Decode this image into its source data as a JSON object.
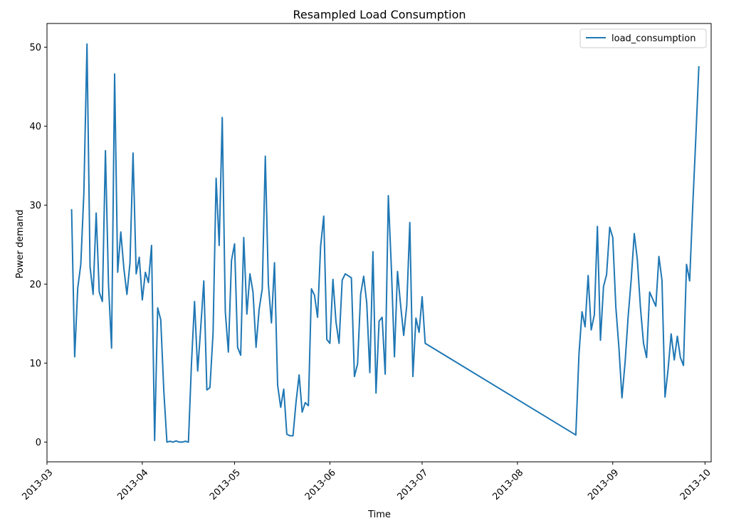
{
  "chart_data": {
    "type": "line",
    "title": "Resampled Load Consumption",
    "xlabel": "Time",
    "ylabel": "Power demand",
    "legend": {
      "placement": "top-right"
    },
    "grid": false,
    "xlim": [
      "2013-03-01",
      "2013-10-03"
    ],
    "ylim": [
      -2.5,
      53
    ],
    "x_ticks": [
      "2013-03-01",
      "2013-04-01",
      "2013-05-01",
      "2013-06-01",
      "2013-07-01",
      "2013-08-01",
      "2013-09-01",
      "2013-10-01"
    ],
    "x_tick_labels": [
      "2013-03",
      "2013-04",
      "2013-05",
      "2013-06",
      "2013-07",
      "2013-08",
      "2013-09",
      "2013-10"
    ],
    "y_ticks": [
      0,
      10,
      20,
      30,
      40,
      50
    ],
    "y_tick_labels": [
      "0",
      "10",
      "20",
      "30",
      "40",
      "50"
    ],
    "series": [
      {
        "name": "load_consumption",
        "color": "#1f77b4",
        "points": [
          [
            "2013-03-09",
            29.4
          ],
          [
            "2013-03-10",
            10.8
          ],
          [
            "2013-03-11",
            19.5
          ],
          [
            "2013-03-12",
            22.5
          ],
          [
            "2013-03-13",
            31.5
          ],
          [
            "2013-03-14",
            50.4
          ],
          [
            "2013-03-15",
            22.2
          ],
          [
            "2013-03-16",
            18.7
          ],
          [
            "2013-03-17",
            29.0
          ],
          [
            "2013-03-18",
            19.0
          ],
          [
            "2013-03-19",
            17.8
          ],
          [
            "2013-03-20",
            36.9
          ],
          [
            "2013-03-21",
            20.0
          ],
          [
            "2013-03-22",
            11.9
          ],
          [
            "2013-03-23",
            46.6
          ],
          [
            "2013-03-24",
            21.5
          ],
          [
            "2013-03-25",
            26.6
          ],
          [
            "2013-03-26",
            22.0
          ],
          [
            "2013-03-27",
            18.7
          ],
          [
            "2013-03-28",
            22.7
          ],
          [
            "2013-03-29",
            36.6
          ],
          [
            "2013-03-30",
            21.3
          ],
          [
            "2013-03-31",
            23.4
          ],
          [
            "2013-04-01",
            18.0
          ],
          [
            "2013-04-02",
            21.5
          ],
          [
            "2013-04-03",
            20.2
          ],
          [
            "2013-04-04",
            24.9
          ],
          [
            "2013-04-05",
            0.2
          ],
          [
            "2013-04-06",
            17.0
          ],
          [
            "2013-04-07",
            15.5
          ],
          [
            "2013-04-08",
            6.5
          ],
          [
            "2013-04-09",
            0.0
          ],
          [
            "2013-04-10",
            0.1
          ],
          [
            "2013-04-11",
            0.0
          ],
          [
            "2013-04-12",
            0.15
          ],
          [
            "2013-04-13",
            0.0
          ],
          [
            "2013-04-14",
            0.0
          ],
          [
            "2013-04-15",
            0.1
          ],
          [
            "2013-04-16",
            0.0
          ],
          [
            "2013-04-17",
            10.0
          ],
          [
            "2013-04-18",
            17.8
          ],
          [
            "2013-04-19",
            9.0
          ],
          [
            "2013-04-20",
            14.5
          ],
          [
            "2013-04-21",
            20.4
          ],
          [
            "2013-04-22",
            6.6
          ],
          [
            "2013-04-23",
            6.9
          ],
          [
            "2013-04-24",
            13.8
          ],
          [
            "2013-04-25",
            33.4
          ],
          [
            "2013-04-26",
            24.9
          ],
          [
            "2013-04-27",
            41.1
          ],
          [
            "2013-04-28",
            16.5
          ],
          [
            "2013-04-29",
            11.4
          ],
          [
            "2013-04-30",
            23.0
          ],
          [
            "2013-05-01",
            25.1
          ],
          [
            "2013-05-02",
            12.0
          ],
          [
            "2013-05-03",
            11.0
          ],
          [
            "2013-05-04",
            25.9
          ],
          [
            "2013-05-05",
            16.2
          ],
          [
            "2013-05-06",
            21.3
          ],
          [
            "2013-05-07",
            19.0
          ],
          [
            "2013-05-08",
            12.0
          ],
          [
            "2013-05-09",
            16.8
          ],
          [
            "2013-05-10",
            19.4
          ],
          [
            "2013-05-11",
            36.2
          ],
          [
            "2013-05-12",
            20.0
          ],
          [
            "2013-05-13",
            15.1
          ],
          [
            "2013-05-14",
            22.7
          ],
          [
            "2013-05-15",
            7.2
          ],
          [
            "2013-05-16",
            4.4
          ],
          [
            "2013-05-17",
            6.7
          ],
          [
            "2013-05-18",
            1.0
          ],
          [
            "2013-05-19",
            0.8
          ],
          [
            "2013-05-20",
            0.8
          ],
          [
            "2013-05-21",
            5.1
          ],
          [
            "2013-05-22",
            8.5
          ],
          [
            "2013-05-23",
            3.8
          ],
          [
            "2013-05-24",
            5.0
          ],
          [
            "2013-05-25",
            4.6
          ],
          [
            "2013-05-26",
            19.4
          ],
          [
            "2013-05-27",
            18.6
          ],
          [
            "2013-05-28",
            15.8
          ],
          [
            "2013-05-29",
            24.8
          ],
          [
            "2013-05-30",
            28.6
          ],
          [
            "2013-05-31",
            13.0
          ],
          [
            "2013-06-01",
            12.5
          ],
          [
            "2013-06-02",
            20.6
          ],
          [
            "2013-06-03",
            15.2
          ],
          [
            "2013-06-04",
            12.5
          ],
          [
            "2013-06-05",
            20.5
          ],
          [
            "2013-06-06",
            21.3
          ],
          [
            "2013-06-08",
            20.8
          ],
          [
            "2013-06-09",
            8.3
          ],
          [
            "2013-06-10",
            9.9
          ],
          [
            "2013-06-11",
            18.7
          ],
          [
            "2013-06-12",
            21.0
          ],
          [
            "2013-06-13",
            17.6
          ],
          [
            "2013-06-14",
            8.8
          ],
          [
            "2013-06-15",
            24.1
          ],
          [
            "2013-06-16",
            6.2
          ],
          [
            "2013-06-17",
            15.3
          ],
          [
            "2013-06-18",
            15.8
          ],
          [
            "2013-06-19",
            8.6
          ],
          [
            "2013-06-20",
            31.2
          ],
          [
            "2013-06-21",
            22.0
          ],
          [
            "2013-06-22",
            10.8
          ],
          [
            "2013-06-23",
            21.6
          ],
          [
            "2013-06-24",
            17.4
          ],
          [
            "2013-06-25",
            13.5
          ],
          [
            "2013-06-26",
            17.3
          ],
          [
            "2013-06-27",
            27.8
          ],
          [
            "2013-06-28",
            8.3
          ],
          [
            "2013-06-29",
            15.7
          ],
          [
            "2013-06-30",
            13.9
          ],
          [
            "2013-07-01",
            18.4
          ],
          [
            "2013-07-02",
            12.5
          ],
          [
            "2013-08-20",
            0.9
          ],
          [
            "2013-08-21",
            11.1
          ],
          [
            "2013-08-22",
            16.5
          ],
          [
            "2013-08-23",
            14.6
          ],
          [
            "2013-08-24",
            21.1
          ],
          [
            "2013-08-25",
            14.2
          ],
          [
            "2013-08-26",
            16.1
          ],
          [
            "2013-08-27",
            27.3
          ],
          [
            "2013-08-28",
            12.9
          ],
          [
            "2013-08-29",
            19.7
          ],
          [
            "2013-08-30",
            21.2
          ],
          [
            "2013-08-31",
            27.2
          ],
          [
            "2013-09-01",
            25.9
          ],
          [
            "2013-09-02",
            17.1
          ],
          [
            "2013-09-03",
            12.0
          ],
          [
            "2013-09-04",
            5.6
          ],
          [
            "2013-09-05",
            10.1
          ],
          [
            "2013-09-06",
            15.9
          ],
          [
            "2013-09-07",
            20.6
          ],
          [
            "2013-09-08",
            26.4
          ],
          [
            "2013-09-09",
            23.1
          ],
          [
            "2013-09-10",
            17.0
          ],
          [
            "2013-09-11",
            12.5
          ],
          [
            "2013-09-12",
            10.7
          ],
          [
            "2013-09-13",
            19.0
          ],
          [
            "2013-09-14",
            18.1
          ],
          [
            "2013-09-15",
            17.2
          ],
          [
            "2013-09-16",
            23.5
          ],
          [
            "2013-09-17",
            20.5
          ],
          [
            "2013-09-18",
            5.7
          ],
          [
            "2013-09-19",
            9.2
          ],
          [
            "2013-09-20",
            13.7
          ],
          [
            "2013-09-21",
            10.4
          ],
          [
            "2013-09-22",
            13.4
          ],
          [
            "2013-09-23",
            10.7
          ],
          [
            "2013-09-24",
            9.7
          ],
          [
            "2013-09-25",
            22.5
          ],
          [
            "2013-09-26",
            20.4
          ],
          [
            "2013-09-27",
            29.8
          ],
          [
            "2013-09-28",
            38.4
          ],
          [
            "2013-09-29",
            47.5
          ]
        ]
      }
    ]
  }
}
